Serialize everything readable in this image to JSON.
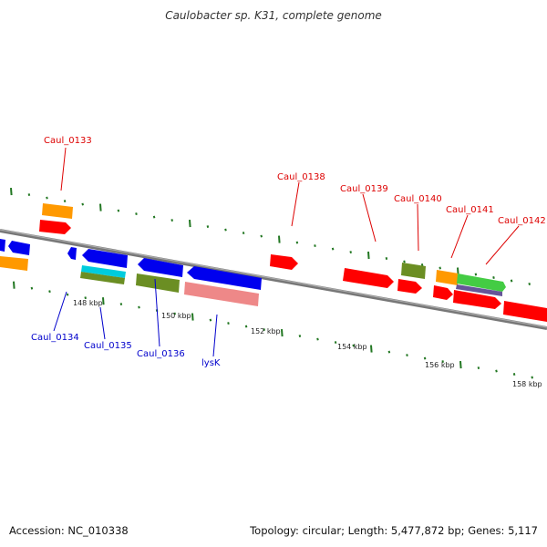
{
  "title": "Caulobacter sp. K31, complete genome",
  "footer": {
    "accession": "Accession: NC_010338",
    "summary": "Topology: circular; Length: 5,477,872 bp; Genes: 5,117"
  },
  "bp_labels": [
    "148 kbp",
    "150 kbp",
    "152 kbp",
    "154 kbp",
    "156 kbp",
    "158 kbp"
  ],
  "gene_labels_top": [
    "Caul_0133",
    "Caul_0138",
    "Caul_0139",
    "Caul_0140",
    "Caul_0141",
    "Caul_0142"
  ],
  "gene_labels_bottom": [
    "Caul_0134",
    "Caul_0135",
    "Caul_0136",
    "lysK"
  ],
  "colors": {
    "red": "#ff0000",
    "blue": "#0000ee",
    "orange": "#ff9900",
    "olive": "#6b8e23",
    "cyan": "#00ccdd",
    "pink": "#ee8888",
    "green": "#44cc44",
    "purple": "#665599",
    "backbone": "#888888",
    "tick": "#227722",
    "top_label": "#dd0000",
    "bottom_label": "#0000cc"
  }
}
